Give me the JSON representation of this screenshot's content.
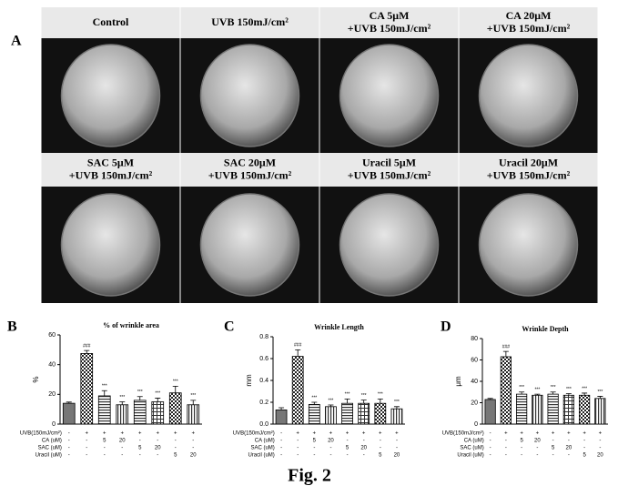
{
  "panel_a": {
    "letter": "A",
    "images": [
      {
        "lines": [
          "Control"
        ]
      },
      {
        "lines": [
          "UVB 150mJ/cm²"
        ]
      },
      {
        "lines": [
          "CA 5μM",
          "+UVB 150mJ/cm²"
        ]
      },
      {
        "lines": [
          "CA 20μM",
          "+UVB 150mJ/cm²"
        ]
      },
      {
        "lines": [
          "SAC 5μM",
          "+UVB 150mJ/cm²"
        ]
      },
      {
        "lines": [
          "SAC 20μM",
          "+UVB 150mJ/cm²"
        ]
      },
      {
        "lines": [
          "Uracil 5μM",
          "+UVB 150mJ/cm²"
        ]
      },
      {
        "lines": [
          "Uracil 20μM",
          "+UVB 150mJ/cm²"
        ]
      }
    ]
  },
  "chart_data": [
    {
      "type": "bar",
      "panel": "B",
      "title": "% of wrinkle area",
      "y_label": "%",
      "values": [
        14,
        47.5,
        19,
        13,
        16,
        15,
        21,
        13
      ],
      "errors": [
        0.8,
        2,
        3.5,
        2,
        2.5,
        2.5,
        4.5,
        3
      ],
      "annotations": [
        null,
        "###",
        "***",
        "***",
        "***",
        "***",
        "***",
        "***"
      ],
      "ylim": [
        0,
        60
      ],
      "yticks": [
        0,
        20,
        40,
        60
      ],
      "conditions": [
        {
          "label": "UVB(150mJ/cm²)",
          "cells": [
            "-",
            "+",
            "+",
            "+",
            "+",
            "+",
            "+",
            "+"
          ]
        },
        {
          "label": "CA  (uM)",
          "cells": [
            "-",
            "-",
            "5",
            "20",
            "-",
            "-",
            "-",
            "-"
          ]
        },
        {
          "label": "SAC  (uM)",
          "cells": [
            "-",
            "-",
            "-",
            "-",
            "5",
            "20",
            "-",
            "-"
          ]
        },
        {
          "label": "Uracil  (uM)",
          "cells": [
            "-",
            "-",
            "-",
            "-",
            "-",
            "-",
            "5",
            "20"
          ]
        }
      ]
    },
    {
      "type": "bar",
      "panel": "C",
      "title": "Wrinkle Length",
      "y_label": "mm",
      "values": [
        0.13,
        0.62,
        0.18,
        0.16,
        0.19,
        0.19,
        0.19,
        0.14
      ],
      "errors": [
        0.02,
        0.06,
        0.02,
        0.015,
        0.04,
        0.03,
        0.04,
        0.02
      ],
      "annotations": [
        null,
        "###",
        "***",
        "***",
        "***",
        "***",
        "***",
        "***"
      ],
      "ylim": [
        0,
        0.8
      ],
      "yticks": [
        {
          "value": 0,
          "label": "0.0"
        },
        {
          "value": 0.2,
          "label": "0.2"
        },
        {
          "value": 0.4,
          "label": "0.4"
        },
        {
          "value": 0.6,
          "label": "0.6"
        },
        {
          "value": 0.8,
          "label": "0.8"
        }
      ],
      "conditions": [
        {
          "label": "UVB(150mJ/cm²)",
          "cells": [
            "-",
            "+",
            "+",
            "+",
            "+",
            "+",
            "+",
            "+"
          ]
        },
        {
          "label": "CA  (uM)",
          "cells": [
            "-",
            "-",
            "5",
            "20",
            "-",
            "-",
            "-",
            "-"
          ]
        },
        {
          "label": "SAC  (uM)",
          "cells": [
            "-",
            "-",
            "-",
            "-",
            "5",
            "20",
            "-",
            "-"
          ]
        },
        {
          "label": "Uracil  (uM)",
          "cells": [
            "-",
            "-",
            "-",
            "-",
            "-",
            "-",
            "5",
            "20"
          ]
        }
      ]
    },
    {
      "type": "bar",
      "panel": "D",
      "title": "Wrinkle Depth",
      "y_label": "μm",
      "values": [
        23,
        63,
        28,
        27,
        28,
        27,
        27,
        24
      ],
      "errors": [
        1,
        5,
        2,
        1,
        2,
        1.5,
        2,
        2
      ],
      "annotations": [
        null,
        "###",
        "***",
        "***",
        "***",
        "***",
        "***",
        "***"
      ],
      "ylim": [
        0,
        80
      ],
      "yticks": [
        0,
        20,
        40,
        60,
        80
      ],
      "conditions": [
        {
          "label": "UVB(150mJ/cm²)",
          "cells": [
            "-",
            "+",
            "+",
            "+",
            "+",
            "+",
            "+",
            "+"
          ]
        },
        {
          "label": "CA  (uM)",
          "cells": [
            "-",
            "-",
            "5",
            "20",
            "-",
            "-",
            "-",
            "-"
          ]
        },
        {
          "label": "SAC  (uM)",
          "cells": [
            "-",
            "-",
            "-",
            "-",
            "5",
            "20",
            "-",
            "-"
          ]
        },
        {
          "label": "Uracil  (uM)",
          "cells": [
            "-",
            "-",
            "-",
            "-",
            "-",
            "-",
            "5",
            "20"
          ]
        }
      ]
    }
  ],
  "caption": "Fig. 2"
}
